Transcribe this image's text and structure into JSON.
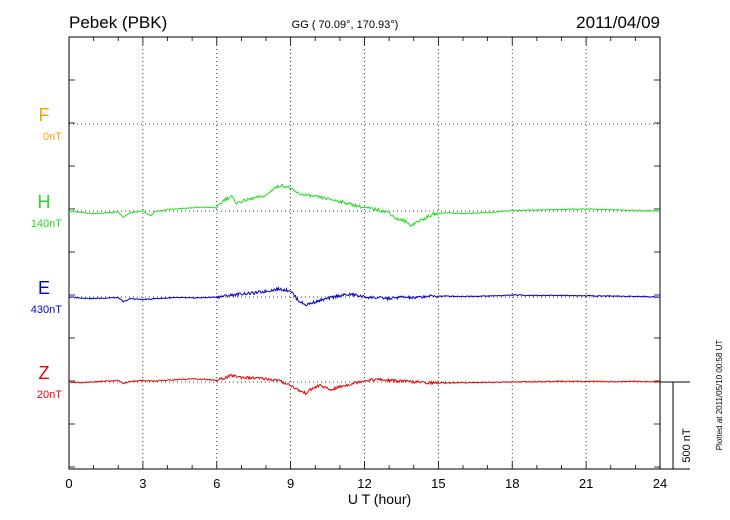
{
  "chart_data": {
    "type": "line",
    "station_title": "Pebek (PBK)",
    "coords_label": "GG ( 70.09°, 170.93°)",
    "date": "2011/04/09",
    "xlabel": "U T (hour)",
    "xlim": [
      0,
      24
    ],
    "x_ticks": [
      "0",
      "3",
      "6",
      "9",
      "12",
      "15",
      "18",
      "21",
      "24"
    ],
    "grid": true,
    "scale_bar_label": "500 nT",
    "plotted_note": "Plotted at 2011/05/10 00:58 UT",
    "series": [
      {
        "name": "F",
        "baseline_label": "0nT",
        "color": "#f5a300",
        "values": []
      },
      {
        "name": "H",
        "baseline_label": "140nT",
        "color": "#22dd22",
        "x": [
          0,
          0.5,
          1,
          1.5,
          2,
          2.2,
          2.5,
          3,
          3.3,
          3.5,
          4,
          4.5,
          5,
          5.5,
          6,
          6.3,
          6.6,
          6.8,
          7,
          7.5,
          8,
          8.3,
          8.6,
          8.9,
          9.1,
          9.3,
          9.6,
          10,
          10.5,
          11,
          11.5,
          12,
          12.5,
          13,
          13.3,
          13.6,
          13.9,
          14.1,
          14.4,
          14.8,
          15.3,
          16,
          17,
          18,
          19,
          20,
          21,
          22,
          23,
          24
        ],
        "values": [
          0,
          -5,
          -8,
          -6,
          -3,
          -20,
          -5,
          0,
          -15,
          -2,
          5,
          8,
          10,
          12,
          10,
          35,
          45,
          25,
          30,
          40,
          48,
          70,
          80,
          75,
          65,
          55,
          50,
          45,
          38,
          30,
          20,
          10,
          5,
          -5,
          -25,
          -30,
          -45,
          -35,
          -25,
          -10,
          -5,
          -8,
          -5,
          2,
          3,
          5,
          6,
          4,
          2,
          0
        ]
      },
      {
        "name": "E",
        "baseline_label": "430nT",
        "color": "#0000cc",
        "x": [
          0,
          0.5,
          1,
          1.5,
          2,
          2.2,
          2.5,
          3,
          3.5,
          4,
          4.5,
          5,
          5.5,
          6,
          6.5,
          7,
          7.5,
          8,
          8.5,
          9,
          9.3,
          9.6,
          10,
          10.5,
          11,
          11.5,
          12,
          12.5,
          13,
          13.5,
          14,
          14.5,
          15,
          16,
          17,
          18,
          19,
          20,
          21,
          22,
          23,
          24
        ],
        "values": [
          0,
          -3,
          -5,
          -3,
          -2,
          -15,
          -5,
          -8,
          -5,
          -3,
          -2,
          -3,
          -2,
          0,
          5,
          10,
          12,
          18,
          25,
          20,
          -10,
          -25,
          -15,
          -5,
          5,
          8,
          0,
          -2,
          -5,
          0,
          -3,
          2,
          3,
          2,
          3,
          6,
          5,
          5,
          4,
          3,
          2,
          0
        ]
      },
      {
        "name": "Z",
        "baseline_label": "20nT",
        "color": "#ee0000",
        "x": [
          0,
          0.5,
          1,
          1.5,
          2,
          2.2,
          2.5,
          3,
          3.5,
          4,
          4.5,
          5,
          5.5,
          6,
          6.3,
          6.6,
          7,
          7.5,
          8,
          8.5,
          9,
          9.3,
          9.6,
          9.9,
          10.2,
          10.6,
          11,
          11.5,
          12,
          12.5,
          13,
          13.5,
          14,
          14.5,
          15,
          16,
          17,
          18,
          19,
          20,
          21,
          22,
          23,
          24
        ],
        "values": [
          0,
          -2,
          0,
          3,
          5,
          -5,
          2,
          5,
          3,
          6,
          8,
          10,
          8,
          5,
          12,
          20,
          15,
          12,
          10,
          5,
          -10,
          -25,
          -35,
          -20,
          -10,
          -25,
          -15,
          -5,
          5,
          8,
          5,
          3,
          0,
          -2,
          -3,
          -2,
          -1,
          0,
          1,
          2,
          2,
          1,
          2,
          0
        ]
      }
    ]
  }
}
